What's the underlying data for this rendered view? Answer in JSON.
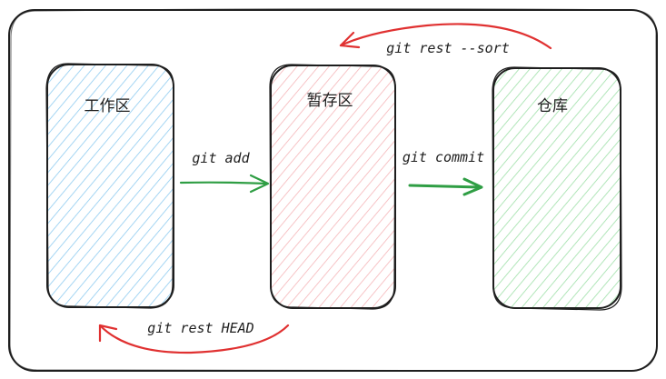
{
  "colors": {
    "stroke": "#1e1e1e",
    "workspace_fill": "#8ecbf0",
    "staging_fill": "#f5b5b8",
    "repo_fill": "#9ee0a8",
    "forward_arrow": "#2f9e44",
    "backward_arrow": "#e03131",
    "background": "#ffffff"
  },
  "areas": {
    "workspace": {
      "label": "工作区"
    },
    "staging": {
      "label": "暂存区"
    },
    "repository": {
      "label": "仓库"
    }
  },
  "commands": {
    "add": "git add",
    "commit": "git commit",
    "reset_soft": "git rest --sort",
    "reset_head": "git rest HEAD"
  }
}
